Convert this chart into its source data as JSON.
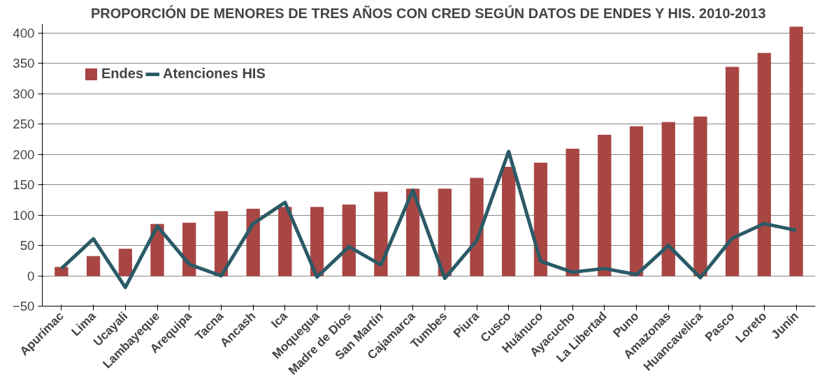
{
  "chart_data": {
    "type": "bar",
    "title": "PROPORCIÓN DE MENORES DE TRES AÑOS CON CRED SEGÚN DATOS DE ENDES Y HIS. 2010-2013",
    "categories": [
      "Apurímac",
      "Lima",
      "Ucayali",
      "Lambayeque",
      "Arequipa",
      "Tacna",
      "Ancash",
      "Ica",
      "Moquegua",
      "Madre de Dios",
      "San Martín",
      "Cajamarca",
      "Tumbes",
      "Piura",
      "Cusco",
      "Huánuco",
      "Ayacucho",
      "La Libertad",
      "Puno",
      "Amazonas",
      "Huancavelica",
      "Pasco",
      "Loreto",
      "Junín"
    ],
    "series": [
      {
        "name": "Endes",
        "color": "#a84644",
        "values": [
          14,
          32,
          44,
          85,
          87,
          106,
          110,
          113,
          113,
          117,
          138,
          143,
          143,
          161,
          179,
          186,
          209,
          232,
          246,
          253,
          262,
          344,
          367,
          410
        ]
      },
      {
        "name": "Atenciones HIS",
        "type": "line",
        "color": "#2a5a66",
        "values": [
          12,
          61,
          -19,
          82,
          19,
          0,
          86,
          121,
          -2,
          48,
          18,
          141,
          -4,
          58,
          205,
          24,
          6,
          12,
          2,
          50,
          -3,
          62,
          86,
          75
        ]
      }
    ],
    "ylim": [
      -50,
      415
    ],
    "yticks": [
      -50,
      0,
      50,
      100,
      150,
      200,
      250,
      300,
      350,
      400
    ],
    "grid": "y",
    "legend": "top left",
    "marker": "none",
    "line_style": "solid"
  }
}
